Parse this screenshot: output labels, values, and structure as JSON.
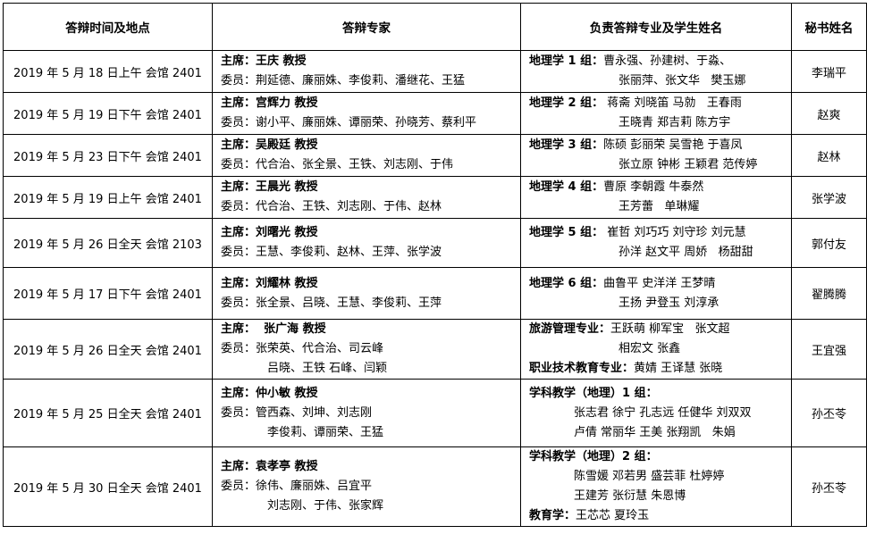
{
  "headers": [
    "答辩时间及地点",
    "答辩专家",
    "负责答辩专业及学生姓名",
    "秘书姓名"
  ],
  "rows": [
    {
      "time": "2019 年 5 月 18 日上午 会馆 2401",
      "chair": "主席：王庆 教授",
      "members": [
        "委员：荆延德、廉丽姝、李俊莉、潘继花、王猛"
      ],
      "groups": [
        {
          "label": "地理学 1 组：",
          "lines": [
            "曹永强、孙建树、于淼、",
            "张丽萍、张文华   樊玉娜"
          ]
        }
      ],
      "secretary": "李瑞平"
    },
    {
      "time": "2019 年 5 月 19 日下午 会馆 2401",
      "chair": "主席：宫辉力 教授",
      "members": [
        "委员：谢小平、廉丽姝、谭丽荣、孙晓芳、蔡利平"
      ],
      "groups": [
        {
          "label": "地理学 2 组：",
          "lines": [
            " 蒋斋 刘晓笛 马勍   王春雨",
            "王晓青 郑吉莉 陈方宇"
          ]
        }
      ],
      "secretary": "赵爽"
    },
    {
      "time": "2019 年 5 月 23 日下午 会馆 2401",
      "chair": "主席：吴殿廷 教授",
      "members": [
        "委员：代合治、张全景、王铁、刘志刚、于伟"
      ],
      "groups": [
        {
          "label": "地理学 3 组：",
          "lines": [
            "陈硕 彭丽荣 吴雪艳 于喜凤",
            "张立原 钟彬 王颖君 范传婷"
          ]
        }
      ],
      "secretary": "赵林"
    },
    {
      "time": "2019 年 5 月 19 日上午 会馆 2401",
      "chair": "主席：王晨光 教授",
      "members": [
        "委员：代合治、王铁、刘志刚、于伟、赵林"
      ],
      "groups": [
        {
          "label": "地理学 4 组：",
          "lines": [
            "曹原 李朝霞 牛泰然",
            "王芳蕾   单琳耀"
          ]
        }
      ],
      "secretary": "张学波"
    },
    {
      "time": "2019 年 5 月 26 日全天 会馆 2103",
      "chair": "主席：刘曙光 教授",
      "members": [
        "委员：王慧、李俊莉、赵林、王萍、张学波"
      ],
      "groups": [
        {
          "label": "地理学 5 组：",
          "lines": [
            " 崔哲 刘巧巧 刘守珍 刘元慧",
            "孙洋 赵文平 周娇   杨甜甜"
          ]
        }
      ],
      "secretary": "郭付友"
    },
    {
      "time": "2019 年 5 月 17 日下午 会馆 2401",
      "chair": "主席：刘耀林 教授",
      "members": [
        "委员：张全景、吕晓、王慧、李俊莉、王萍"
      ],
      "groups": [
        {
          "label": "地理学 6 组：",
          "lines": [
            "曲鲁平 史洋洋 王梦晴",
            "王扬 尹登玉 刘淳承"
          ]
        }
      ],
      "secretary": "翟腾腾"
    },
    {
      "time": "2019 年 5 月 26 日全天 会馆 2401",
      "chair": "主席：  张广海 教授",
      "members": [
        "委员：张荣英、代合治、司云峰",
        "吕晓、王铁 石峰、闫颖"
      ],
      "groups": [
        {
          "label": "旅游管理专业：",
          "lines": [
            "王跃萌 柳军宝   张文超",
            "相宏文 张鑫"
          ]
        },
        {
          "label": "职业技术教育专业：",
          "lines": [
            "黄婧 王译慧 张晓"
          ]
        }
      ],
      "secretary": "王宜强"
    },
    {
      "time": "2019 年 5 月 25 日全天 会馆 2401",
      "chair": "主席：仲小敏 教授",
      "members": [
        "委员：管西森、刘坤、刘志刚",
        "李俊莉、谭丽荣、王猛"
      ],
      "groups": [
        {
          "label": "学科教学（地理）1 组：",
          "lines": [
            "张志君 徐宁 孔志远 任健华 刘双双",
            "卢倩 常丽华 王美 张翔凯   朱娟"
          ]
        }
      ],
      "secretary": "孙丕苓"
    },
    {
      "time": "2019 年 5 月 30 日全天 会馆 2401",
      "chair": "主席：袁孝亭 教授",
      "members": [
        "委员：徐伟、廉丽姝、吕宜平",
        "刘志刚、于伟、张家辉"
      ],
      "groups": [
        {
          "label": "学科教学（地理）2 组：",
          "lines": [
            "陈雪媛 邓若男 盛芸菲 杜婷婷",
            "王建芳 张衍慧 朱恩博"
          ]
        },
        {
          "label": "教育学：",
          "lines": [
            "王芯芯 夏玲玉"
          ]
        }
      ],
      "secretary": "孙丕苓"
    }
  ]
}
